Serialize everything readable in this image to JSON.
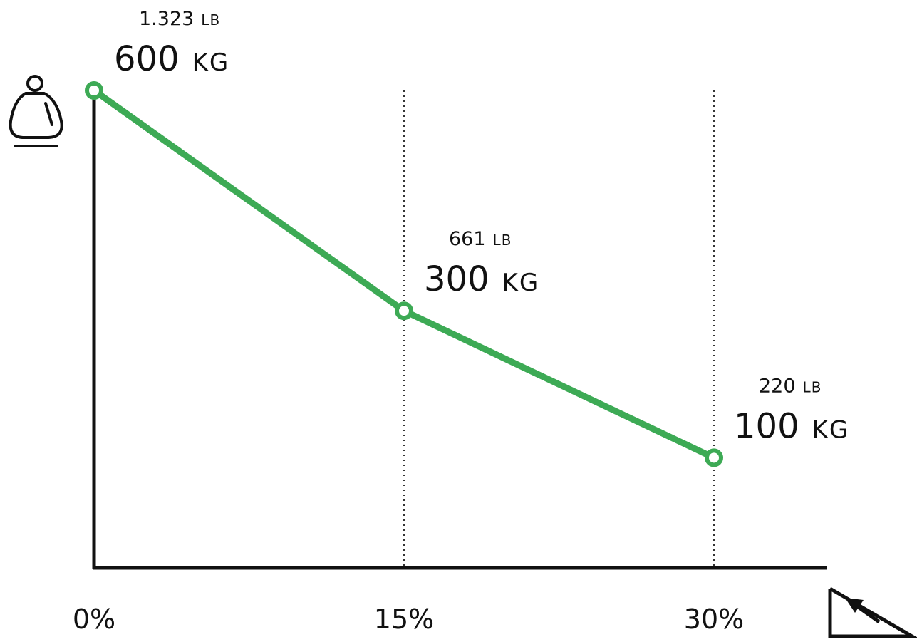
{
  "chart_data": {
    "type": "line",
    "title": "",
    "xlabel": "",
    "ylabel": "",
    "x": [
      "0%",
      "15%",
      "30%"
    ],
    "x_values": [
      0,
      15,
      30
    ],
    "xlim": [
      0,
      36
    ],
    "ylim": [
      -50,
      600
    ],
    "grid": "vertical dotted lines at 15% and 30%",
    "series": [
      {
        "values": [
          600,
          300,
          100
        ],
        "labels": [
          {
            "lb_value": "1.323",
            "lb_unit": "LB",
            "kg_value": "600",
            "kg_unit": "KG"
          },
          {
            "lb_value": "661",
            "lb_unit": "LB",
            "kg_value": "300",
            "kg_unit": "KG"
          },
          {
            "lb_value": "220",
            "lb_unit": "LB",
            "kg_value": "100",
            "kg_unit": "KG"
          }
        ]
      }
    ],
    "colors": {
      "line": "#3daa55",
      "axis": "#111111",
      "grid": "#333333"
    },
    "icons": {
      "y_axis": "weight-icon",
      "x_axis": "incline-slope-icon"
    }
  }
}
